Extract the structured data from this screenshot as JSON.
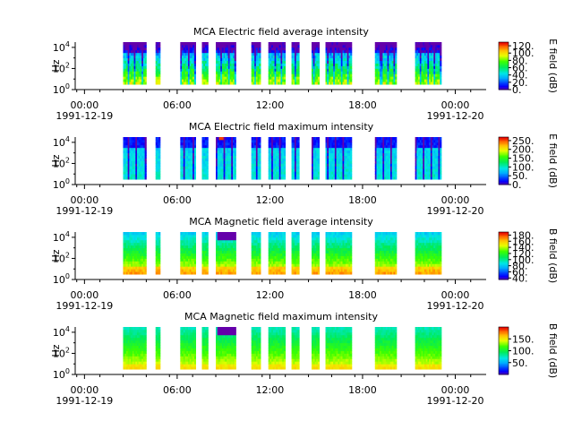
{
  "figure": {
    "background": "#ffffff"
  },
  "chart_data": [
    {
      "type": "heatmap",
      "title": "MCA  Electric field average intensity",
      "ylabel": "Hz",
      "y_ticks": [
        {
          "base": "10",
          "exp": "0"
        },
        {
          "base": "10",
          "exp": "2"
        },
        {
          "base": "10",
          "exp": "4"
        }
      ],
      "y_scale": "log",
      "ylim_log10": [
        0,
        4.5
      ],
      "x_ticks": [
        {
          "label": "00:00",
          "sub": "1991-12-19"
        },
        {
          "label": "06:00",
          "sub": ""
        },
        {
          "label": "12:00",
          "sub": ""
        },
        {
          "label": "18:00",
          "sub": ""
        },
        {
          "label": "00:00",
          "sub": "1991-12-20"
        }
      ],
      "xlim_hours": [
        0,
        26
      ],
      "colorbar": {
        "label": "E field (dB)",
        "ticks": [
          "120.",
          "100.",
          "80.",
          "60.",
          "40.",
          "20.",
          "0."
        ],
        "range": [
          0,
          130
        ]
      },
      "coverage_hours": [
        [
          2.5,
          4.0
        ],
        [
          4.6,
          4.9
        ],
        [
          6.2,
          7.2
        ],
        [
          7.6,
          8.0
        ],
        [
          8.5,
          9.8
        ],
        [
          10.8,
          11.4
        ],
        [
          11.9,
          13.0
        ],
        [
          13.4,
          13.9
        ],
        [
          14.7,
          15.2
        ],
        [
          15.6,
          17.3
        ],
        [
          18.8,
          20.2
        ],
        [
          21.4,
          23.1
        ]
      ],
      "colormap": "rainbow",
      "pattern": "elec_avg"
    },
    {
      "type": "heatmap",
      "title": "MCA  Electric field maximum intensity",
      "ylabel": "Hz",
      "y_ticks": [
        {
          "base": "10",
          "exp": "0"
        },
        {
          "base": "10",
          "exp": "2"
        },
        {
          "base": "10",
          "exp": "4"
        }
      ],
      "y_scale": "log",
      "ylim_log10": [
        0,
        4.5
      ],
      "x_ticks": [
        {
          "label": "00:00",
          "sub": "1991-12-19"
        },
        {
          "label": "06:00",
          "sub": ""
        },
        {
          "label": "12:00",
          "sub": ""
        },
        {
          "label": "18:00",
          "sub": ""
        },
        {
          "label": "00:00",
          "sub": "1991-12-20"
        }
      ],
      "xlim_hours": [
        0,
        26
      ],
      "colorbar": {
        "label": "E field (dB)",
        "ticks": [
          "250.",
          "200.",
          "150.",
          "100.",
          "50.",
          "0."
        ],
        "range": [
          0,
          270
        ]
      },
      "coverage_hours": [
        [
          2.5,
          4.0
        ],
        [
          4.6,
          4.9
        ],
        [
          6.2,
          7.2
        ],
        [
          7.6,
          8.0
        ],
        [
          8.5,
          9.8
        ],
        [
          10.8,
          11.4
        ],
        [
          11.9,
          13.0
        ],
        [
          13.4,
          13.9
        ],
        [
          14.7,
          15.2
        ],
        [
          15.6,
          17.3
        ],
        [
          18.8,
          20.2
        ],
        [
          21.4,
          23.1
        ]
      ],
      "colormap": "rainbow",
      "pattern": "elec_max"
    },
    {
      "type": "heatmap",
      "title": "MCA  Magnetic field average intensity",
      "ylabel": "Hz",
      "y_ticks": [
        {
          "base": "10",
          "exp": "0"
        },
        {
          "base": "10",
          "exp": "2"
        },
        {
          "base": "10",
          "exp": "4"
        }
      ],
      "y_scale": "log",
      "ylim_log10": [
        0,
        4.5
      ],
      "x_ticks": [
        {
          "label": "00:00",
          "sub": "1991-12-19"
        },
        {
          "label": "06:00",
          "sub": ""
        },
        {
          "label": "12:00",
          "sub": ""
        },
        {
          "label": "18:00",
          "sub": ""
        },
        {
          "label": "00:00",
          "sub": "1991-12-20"
        }
      ],
      "xlim_hours": [
        0,
        26
      ],
      "colorbar": {
        "label": "B field (dB)",
        "ticks": [
          "180.",
          "160.",
          "140.",
          "120.",
          "100.",
          "80.",
          "60.",
          "40."
        ],
        "range": [
          35,
          190
        ]
      },
      "coverage_hours": [
        [
          2.5,
          4.0
        ],
        [
          4.6,
          4.9
        ],
        [
          6.2,
          7.2
        ],
        [
          7.6,
          8.0
        ],
        [
          8.5,
          9.8
        ],
        [
          10.8,
          11.4
        ],
        [
          11.9,
          13.0
        ],
        [
          13.4,
          13.9
        ],
        [
          14.7,
          15.2
        ],
        [
          15.6,
          17.3
        ],
        [
          18.8,
          20.2
        ],
        [
          21.4,
          23.1
        ]
      ],
      "colormap": "rainbow",
      "pattern": "mag_avg"
    },
    {
      "type": "heatmap",
      "title": "MCA  Magnetic field maximum intensity",
      "ylabel": "Hz",
      "y_ticks": [
        {
          "base": "10",
          "exp": "0"
        },
        {
          "base": "10",
          "exp": "2"
        },
        {
          "base": "10",
          "exp": "4"
        }
      ],
      "y_scale": "log",
      "ylim_log10": [
        0,
        4.5
      ],
      "x_ticks": [
        {
          "label": "00:00",
          "sub": "1991-12-19"
        },
        {
          "label": "06:00",
          "sub": ""
        },
        {
          "label": "12:00",
          "sub": ""
        },
        {
          "label": "18:00",
          "sub": ""
        },
        {
          "label": "00:00",
          "sub": "1991-12-20"
        }
      ],
      "xlim_hours": [
        0,
        26
      ],
      "colorbar": {
        "label": "B field (dB)",
        "ticks": [
          "150.",
          "100.",
          "50."
        ],
        "range": [
          0,
          200
        ]
      },
      "coverage_hours": [
        [
          2.5,
          4.0
        ],
        [
          4.6,
          4.9
        ],
        [
          6.2,
          7.2
        ],
        [
          7.6,
          8.0
        ],
        [
          8.5,
          9.8
        ],
        [
          10.8,
          11.4
        ],
        [
          11.9,
          13.0
        ],
        [
          13.4,
          13.9
        ],
        [
          14.7,
          15.2
        ],
        [
          15.6,
          17.3
        ],
        [
          18.8,
          20.2
        ],
        [
          21.4,
          23.1
        ]
      ],
      "colormap": "rainbow",
      "pattern": "mag_max"
    }
  ]
}
